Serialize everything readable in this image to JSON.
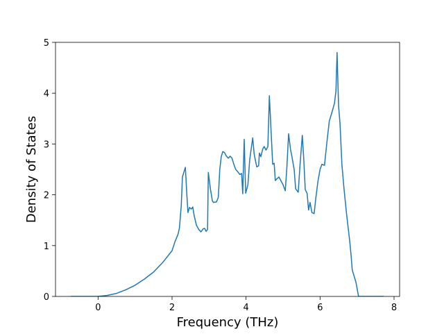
{
  "chart_data": {
    "type": "line",
    "xlabel": "Frequency (THz)",
    "ylabel": "Density of States",
    "color": "#1f77b4",
    "xlim": [
      -1.15,
      8.15
    ],
    "ylim": [
      0,
      5
    ],
    "xticks": [
      0,
      2,
      4,
      6,
      8
    ],
    "yticks": [
      0,
      1,
      2,
      3,
      4,
      5
    ],
    "x": [
      -0.73,
      0,
      0.25,
      0.5,
      0.75,
      1,
      1.25,
      1.5,
      1.75,
      2,
      2.08,
      2.16,
      2.2,
      2.25,
      2.28,
      2.36,
      2.4,
      2.43,
      2.47,
      2.52,
      2.56,
      2.6,
      2.66,
      2.72,
      2.78,
      2.84,
      2.88,
      2.92,
      2.96,
      2.98,
      3.04,
      3.09,
      3.12,
      3.2,
      3.25,
      3.29,
      3.33,
      3.37,
      3.42,
      3.47,
      3.52,
      3.57,
      3.62,
      3.67,
      3.72,
      3.78,
      3.83,
      3.88,
      3.91,
      3.95,
      3.99,
      4.05,
      4.1,
      4.18,
      4.22,
      4.26,
      4.29,
      4.34,
      4.36,
      4.4,
      4.45,
      4.49,
      4.54,
      4.59,
      4.63,
      4.68,
      4.72,
      4.76,
      4.79,
      4.84,
      4.89,
      4.94,
      5.0,
      5.06,
      5.1,
      5.15,
      5.2,
      5.24,
      5.3,
      5.34,
      5.41,
      5.46,
      5.52,
      5.56,
      5.6,
      5.65,
      5.69,
      5.73,
      5.78,
      5.84,
      5.88,
      5.94,
      6.0,
      6.05,
      6.12,
      6.18,
      6.25,
      6.32,
      6.39,
      6.43,
      6.46,
      6.5,
      6.54,
      6.59,
      6.65,
      6.72,
      6.76,
      6.8,
      6.84,
      6.87,
      6.92,
      6.97,
      7.04,
      7.72
    ],
    "values": [
      0,
      0,
      0.02,
      0.06,
      0.13,
      0.22,
      0.34,
      0.48,
      0.67,
      0.9,
      1.08,
      1.22,
      1.35,
      1.8,
      2.35,
      2.54,
      2.0,
      1.65,
      1.75,
      1.72,
      1.76,
      1.58,
      1.4,
      1.32,
      1.27,
      1.33,
      1.34,
      1.28,
      1.32,
      2.44,
      2.1,
      1.88,
      1.85,
      1.86,
      1.95,
      2.5,
      2.75,
      2.85,
      2.83,
      2.76,
      2.72,
      2.76,
      2.72,
      2.6,
      2.5,
      2.45,
      2.4,
      2.42,
      2.02,
      3.09,
      2.03,
      2.2,
      2.7,
      3.12,
      2.8,
      2.65,
      2.55,
      2.57,
      2.82,
      2.75,
      2.9,
      2.95,
      2.88,
      2.95,
      3.95,
      3.2,
      2.6,
      2.62,
      2.28,
      2.32,
      2.35,
      2.28,
      2.2,
      2.08,
      2.5,
      3.2,
      2.9,
      2.75,
      2.5,
      2.12,
      2.05,
      2.6,
      3.17,
      2.7,
      2.1,
      2.03,
      1.7,
      1.85,
      1.65,
      1.63,
      1.9,
      2.25,
      2.5,
      2.6,
      2.58,
      3.0,
      3.45,
      3.62,
      3.8,
      4.05,
      4.8,
      3.75,
      3.4,
      2.6,
      2.1,
      1.6,
      1.35,
      1.1,
      0.8,
      0.52,
      0.4,
      0.28,
      0,
      0
    ]
  }
}
